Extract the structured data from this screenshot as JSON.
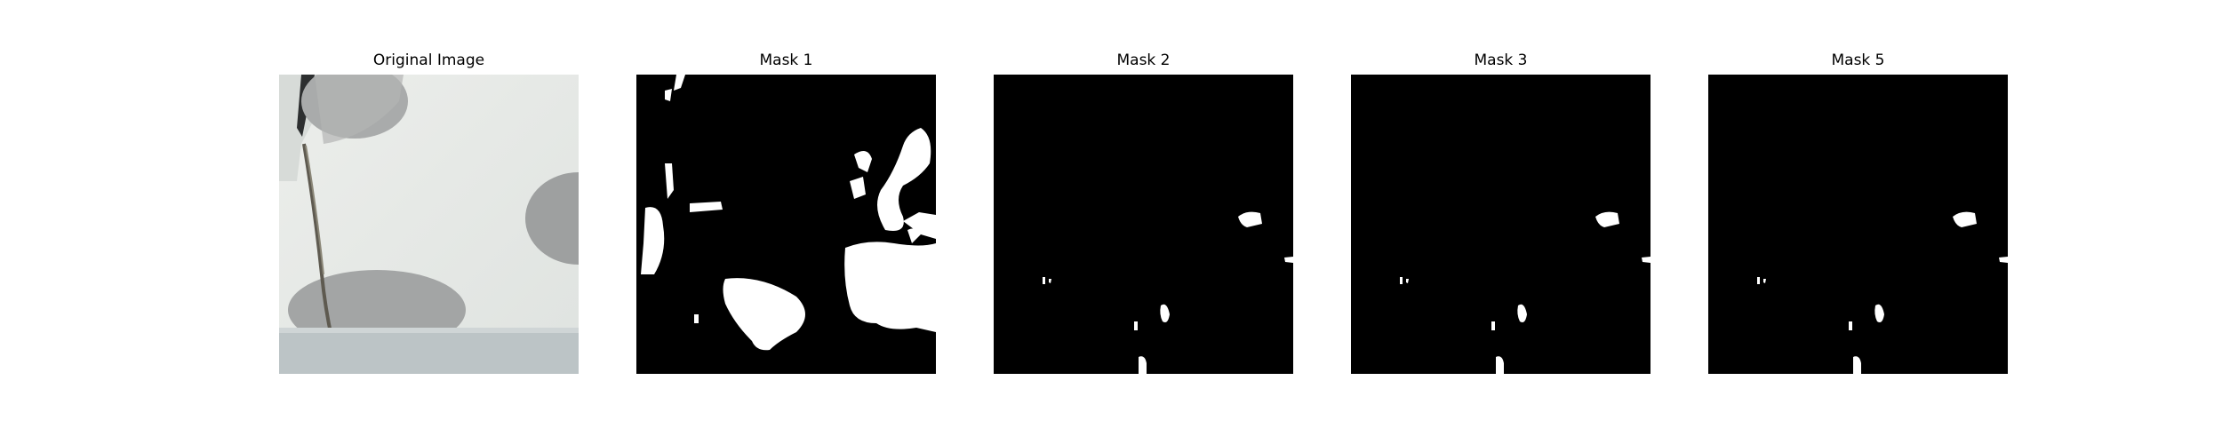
{
  "figure": {
    "panels": [
      {
        "title": "Original Image"
      },
      {
        "title": "Mask 1"
      },
      {
        "title": "Mask 2"
      },
      {
        "title": "Mask 3"
      },
      {
        "title": "Mask 5"
      }
    ]
  }
}
